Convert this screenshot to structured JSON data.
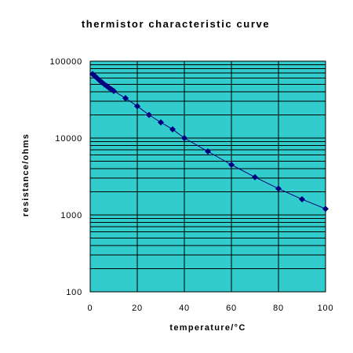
{
  "chart_data": {
    "type": "scatter",
    "title": "thermistor characteristic curve",
    "xlabel": "temperature/°C",
    "ylabel": "resistance/ohms",
    "xlim": [
      0,
      100
    ],
    "ylim": [
      100,
      100000
    ],
    "yscale": "log",
    "x_ticks": [
      0,
      20,
      40,
      60,
      80,
      100
    ],
    "y_ticks": [
      100,
      1000,
      10000,
      100000
    ],
    "grid": true,
    "legend": "none",
    "colors": {
      "plot_background": "#33CCCC",
      "grid": "#000000",
      "marker": "#000080",
      "line": "#000080"
    },
    "series": [
      {
        "marker": "diamond",
        "line": true,
        "x": [
          1,
          2,
          3,
          4,
          5,
          6,
          7,
          8,
          9,
          10,
          15,
          20,
          25,
          30,
          35,
          40,
          50,
          60,
          70,
          80,
          90,
          100
        ],
        "y": [
          68000,
          64000,
          60000,
          56000,
          53000,
          50000,
          47500,
          45000,
          43000,
          41000,
          33000,
          26000,
          20000,
          16000,
          13000,
          10000,
          6700,
          4500,
          3100,
          2200,
          1600,
          1200
        ]
      }
    ]
  }
}
